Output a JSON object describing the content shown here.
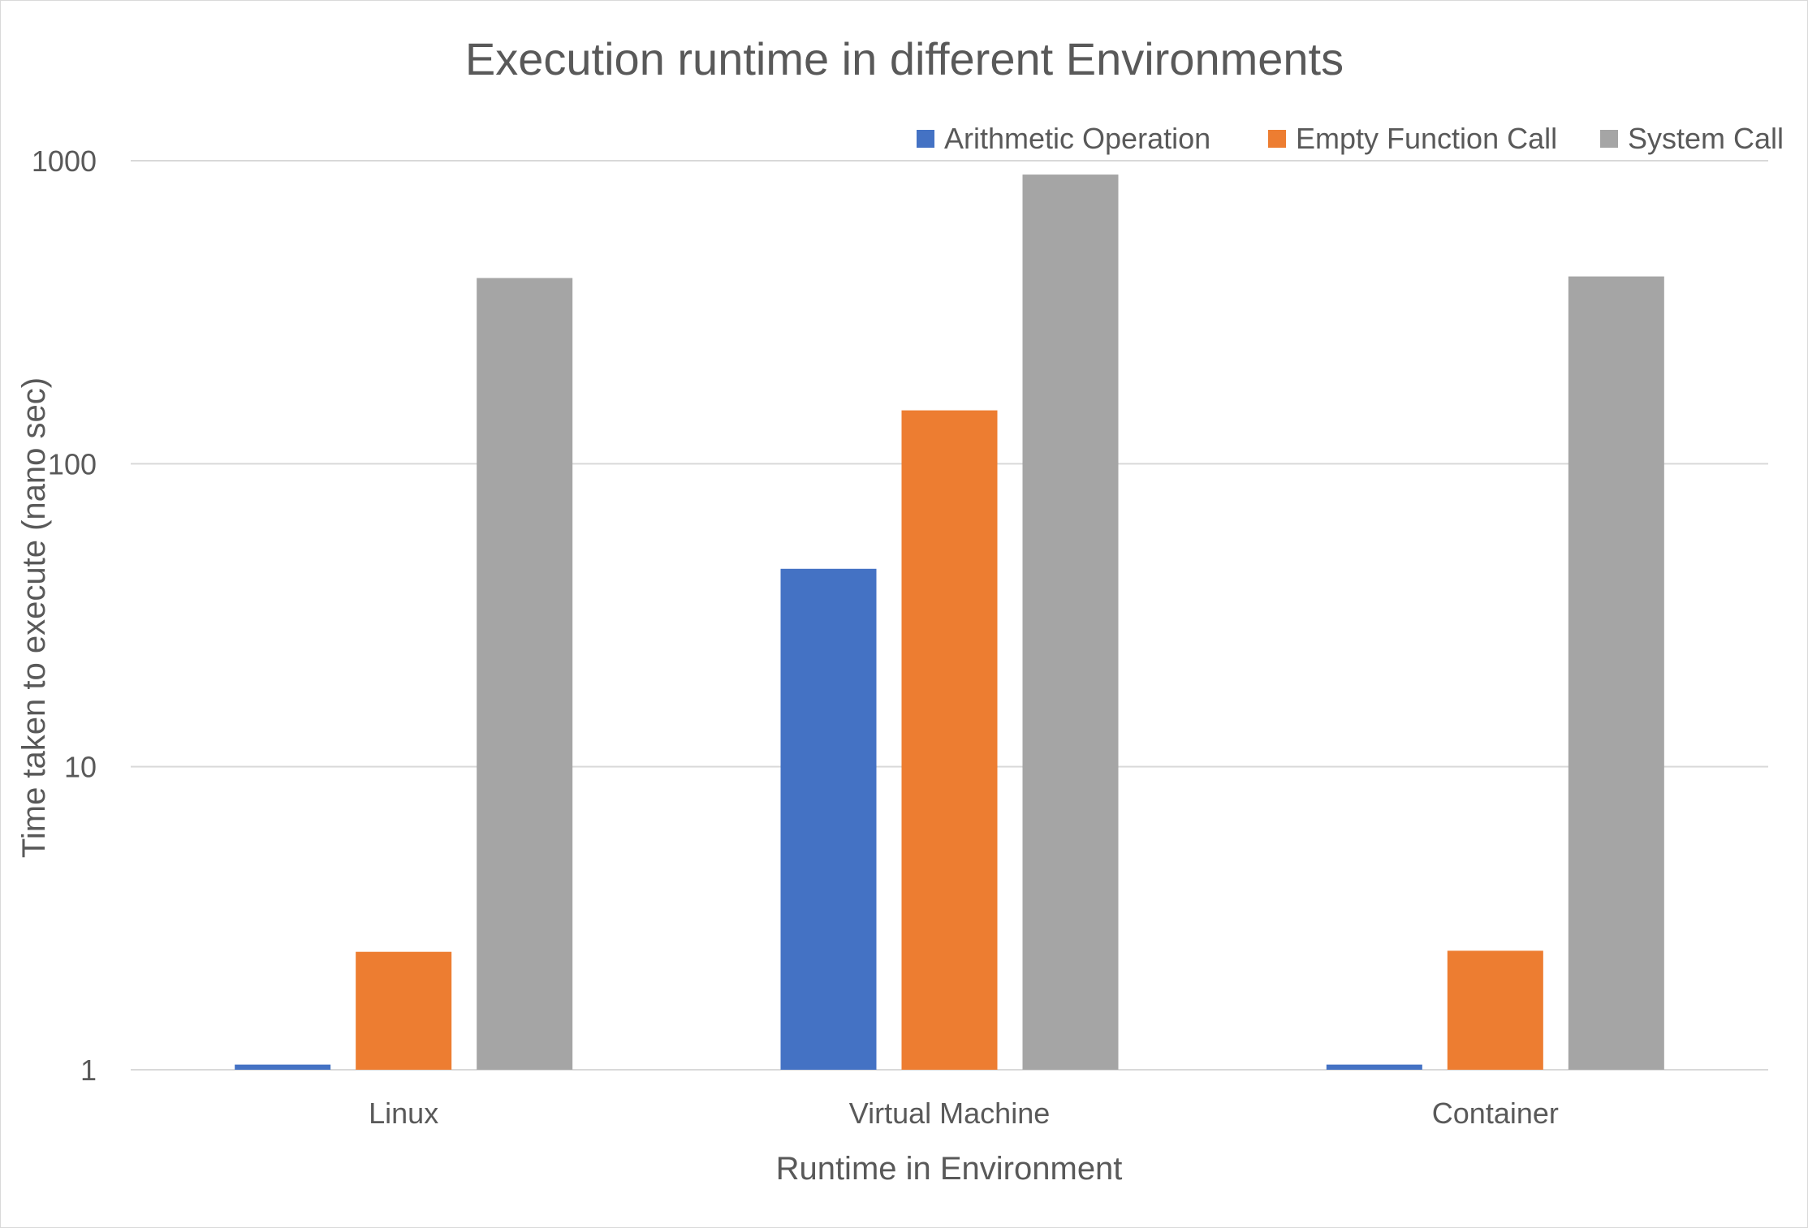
{
  "chart_data": {
    "type": "bar",
    "title": "Execution runtime in different Environments",
    "xlabel": "Runtime in Environment",
    "ylabel": "Time taken to execute (nano sec)",
    "categories": [
      "Linux",
      "Virtual Machine",
      "Container"
    ],
    "series": [
      {
        "name": "Arithmetic Operation",
        "color": "#4472C4",
        "values": [
          1.04,
          45,
          1.04
        ]
      },
      {
        "name": "Empty Function Call",
        "color": "#ED7D31",
        "values": [
          2.45,
          150,
          2.47
        ]
      },
      {
        "name": "System Call",
        "color": "#A5A5A5",
        "values": [
          410,
          900,
          415
        ]
      }
    ],
    "y_scale": "log",
    "ylim": [
      1,
      1000
    ],
    "y_ticks": [
      {
        "value": 1,
        "label": "1"
      },
      {
        "value": 10,
        "label": "10"
      },
      {
        "value": 100,
        "label": "100"
      },
      {
        "value": 1000,
        "label": "1000"
      }
    ],
    "grid": true,
    "legend_position": "top-right",
    "colors": {
      "gridline": "#D9D9D9",
      "text": "#595959",
      "border": "#D9D9D9"
    }
  }
}
